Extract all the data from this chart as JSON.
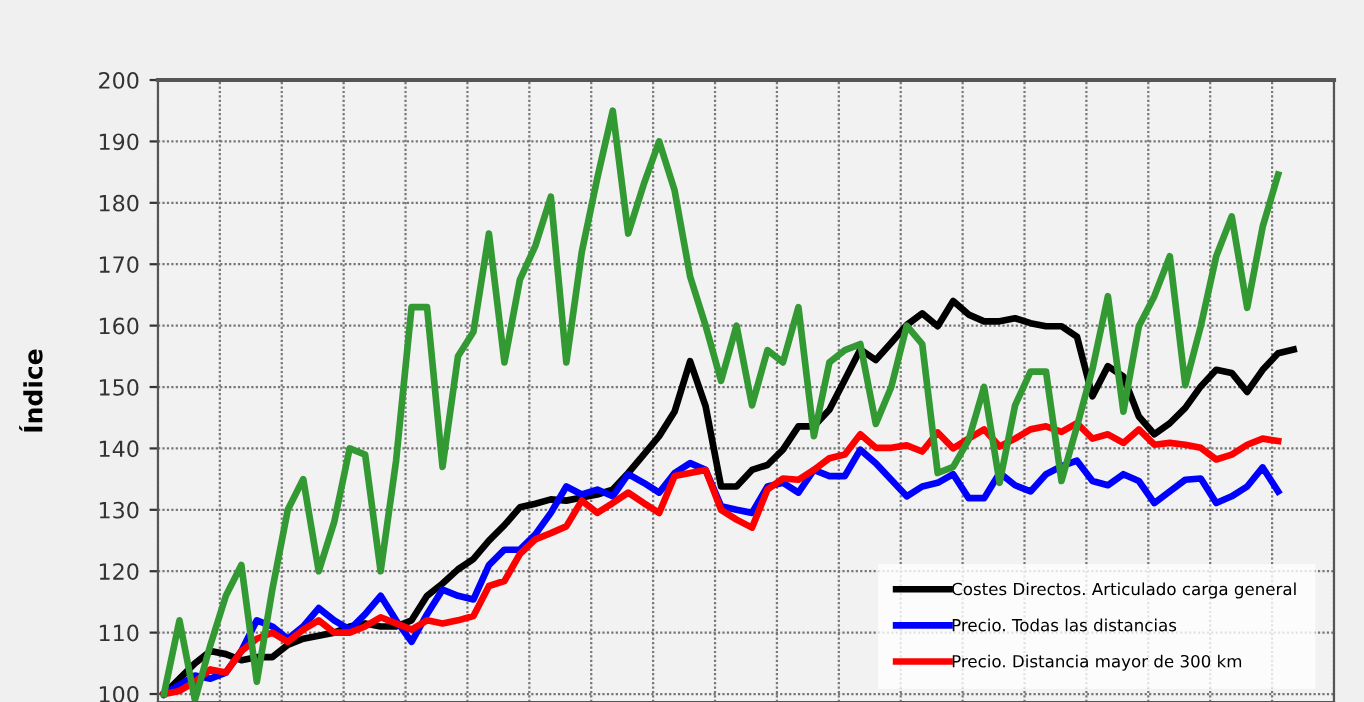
{
  "chart_data": {
    "type": "line",
    "ylabel": "Índice",
    "ylim": [
      98.7,
      200
    ],
    "yticks": [
      100,
      110,
      120,
      130,
      140,
      150,
      160,
      170,
      180,
      190,
      200
    ],
    "grid": true,
    "legend": "bottom right",
    "tick_labels": "y",
    "marker": "none",
    "line_style": "solid",
    "categories": [
      null,
      null,
      null,
      null,
      null,
      null,
      null,
      null,
      null,
      null,
      null,
      null,
      null,
      null,
      null,
      null,
      null,
      null,
      null,
      null,
      null,
      null,
      null,
      null,
      null,
      null,
      null,
      null,
      null,
      null,
      null,
      null,
      null,
      null,
      null,
      null,
      null,
      null,
      null,
      null,
      null,
      null,
      null,
      null,
      null,
      null,
      null,
      null,
      null,
      null,
      null,
      null,
      null,
      null,
      null,
      null,
      null,
      null,
      null,
      null,
      null,
      null,
      null,
      null,
      null,
      null,
      null,
      null,
      null,
      null,
      null,
      null,
      null,
      null
    ],
    "series": [
      {
        "name": "Costes Directos. Articulado carga general",
        "color": "#000000",
        "values": [
          100,
          102.5,
          105,
          107,
          106.5,
          105.5,
          106,
          106,
          108,
          109,
          109.5,
          110,
          111,
          111.5,
          111,
          111,
          112,
          116,
          118,
          120.3,
          122,
          125,
          127.5,
          130.4,
          131,
          131.7,
          131.5,
          132,
          132.5,
          133.3,
          136,
          139,
          142,
          146,
          154.2,
          146.9,
          133.8,
          133.8,
          136.5,
          137.3,
          139.8,
          143.6,
          143.6,
          146.3,
          151.2,
          156.1,
          154.4,
          157.2,
          160.1,
          162,
          159.9,
          164,
          161.8,
          160.7,
          160.7,
          161.2,
          160.4,
          159.9,
          159.9,
          158.2,
          148.5,
          153.4,
          151.7,
          145.2,
          142.3,
          144.1,
          146.6,
          150.1,
          152.8,
          152.3,
          149.2,
          152.8,
          155.5,
          156.1
        ]
      },
      {
        "name": "Precio. Todas las distancias",
        "color": "#0000ff",
        "values": [
          100,
          101.5,
          103,
          102.5,
          103.5,
          107,
          112,
          111,
          109,
          111,
          114,
          112,
          110.5,
          113,
          116,
          112,
          108.5,
          113,
          117,
          116,
          115.4,
          121,
          123.5,
          123.5,
          126,
          129.5,
          133.8,
          132.5,
          133.3,
          132.2,
          135.8,
          134.4,
          132.8,
          136,
          137.6,
          136.5,
          130.6,
          130,
          129.5,
          133.8,
          134.4,
          132.8,
          136.5,
          135.5,
          135.5,
          139.8,
          137.6,
          134.9,
          132.2,
          133.8,
          134.4,
          135.8,
          131.9,
          131.9,
          136,
          134,
          133,
          135.8,
          137.1,
          138,
          134.7,
          134,
          135.8,
          134.7,
          131.1,
          133,
          134.9,
          135.1,
          131.1,
          132.2,
          133.8,
          136.9,
          133,
          null
        ]
      },
      {
        "name": "Precio. Distancia mayor de 300 km",
        "color": "#ff0000",
        "values": [
          100,
          100.5,
          102,
          104,
          103.5,
          107,
          109,
          110,
          108.5,
          110.5,
          112,
          110,
          110,
          111,
          112.5,
          111.5,
          110.5,
          112,
          111.5,
          112,
          112.7,
          117.6,
          118.4,
          122.8,
          125.2,
          126.2,
          127.3,
          131.5,
          129.5,
          131.1,
          132.8,
          131.1,
          129.5,
          135.5,
          136,
          136.5,
          130,
          128.4,
          127.1,
          133.3,
          135.1,
          134.9,
          136.5,
          138.4,
          139,
          142.3,
          140.1,
          140.1,
          140.5,
          139.5,
          142.6,
          140,
          141.6,
          143.1,
          140.3,
          141.6,
          143.1,
          143.6,
          142.7,
          144.1,
          141.6,
          142.3,
          140.9,
          143.1,
          140.6,
          140.9,
          140.6,
          140.1,
          138.2,
          139,
          140.6,
          141.6,
          141.2,
          null
        ]
      },
      {
        "color": "#339933",
        "values": [
          100,
          112,
          99,
          108,
          116,
          121,
          102,
          117,
          130,
          135,
          120,
          128,
          140,
          139,
          120,
          138,
          163,
          163,
          137,
          155,
          159,
          175,
          154,
          167.5,
          173,
          181,
          154,
          172,
          184,
          195,
          175,
          183,
          190,
          182,
          168,
          160,
          151,
          160,
          147,
          156,
          154,
          163,
          142,
          154,
          156,
          157,
          144,
          150,
          160,
          157,
          136,
          137,
          141.4,
          150,
          134.4,
          147,
          152.5,
          152.5,
          134.7,
          143.6,
          152.9,
          164.8,
          146,
          159.9,
          164.8,
          171.3,
          150.3,
          159.9,
          171.3,
          177.8,
          162.9,
          176.1,
          184.6,
          null
        ]
      }
    ]
  }
}
